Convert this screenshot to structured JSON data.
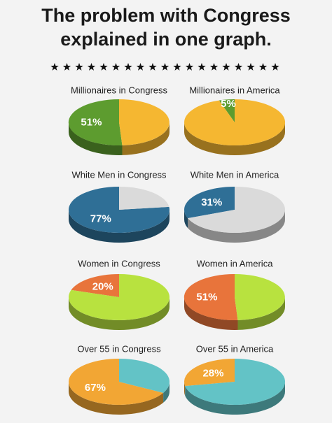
{
  "header": {
    "title_lines": [
      "The problem with Congress",
      "explained in one graph."
    ]
  },
  "chart_data": [
    {
      "type": "pie",
      "title": "Millionaires in Congress",
      "values": [
        51,
        49
      ],
      "value_labels": [
        "51%",
        null
      ],
      "colors": [
        "#5d9c2f",
        "#f5b731"
      ]
    },
    {
      "type": "pie",
      "title": "Millionaires in America",
      "values": [
        5,
        95
      ],
      "value_labels": [
        "5%",
        null
      ],
      "colors": [
        "#5d9c2f",
        "#f5b731"
      ]
    },
    {
      "type": "pie",
      "title": "White Men in Congress",
      "values": [
        77,
        23
      ],
      "value_labels": [
        "77%",
        null
      ],
      "colors": [
        "#2f6f96",
        "#dadada"
      ]
    },
    {
      "type": "pie",
      "title": "White Men in America",
      "values": [
        31,
        69
      ],
      "value_labels": [
        "31%",
        null
      ],
      "colors": [
        "#2f6f96",
        "#dadada"
      ]
    },
    {
      "type": "pie",
      "title": "Women in Congress",
      "values": [
        20,
        80
      ],
      "value_labels": [
        "20%",
        null
      ],
      "colors": [
        "#e8743b",
        "#b8e23f"
      ]
    },
    {
      "type": "pie",
      "title": "Women in America",
      "values": [
        51,
        49
      ],
      "value_labels": [
        "51%",
        null
      ],
      "colors": [
        "#e8743b",
        "#b8e23f"
      ]
    },
    {
      "type": "pie",
      "title": "Over 55 in Congress",
      "values": [
        67,
        33
      ],
      "value_labels": [
        "67%",
        null
      ],
      "colors": [
        "#f2a634",
        "#63c3c6"
      ]
    },
    {
      "type": "pie",
      "title": "Over 55 in America",
      "values": [
        28,
        72
      ],
      "value_labels": [
        "28%",
        null
      ],
      "colors": [
        "#f2a634",
        "#63c3c6"
      ]
    }
  ]
}
